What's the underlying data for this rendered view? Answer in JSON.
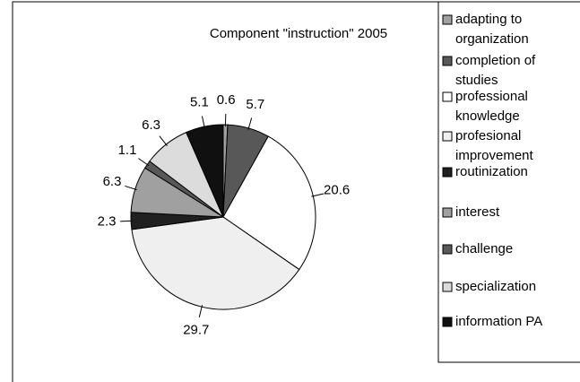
{
  "chart_data": {
    "type": "pie",
    "title": "Component \"instruction\" 2005",
    "categories": [
      "adapting to organization",
      "completion of studies",
      "professional knowledge",
      "profesional improvement",
      "routinization",
      "interest",
      "challenge",
      "specialization",
      "information PA"
    ],
    "values": [
      0.6,
      5.7,
      20.6,
      29.7,
      2.3,
      6.3,
      1.1,
      6.3,
      5.1
    ],
    "colors": [
      "#a0a0a0",
      "#585858",
      "#ffffff",
      "#efefef",
      "#202020",
      "#a0a0a0",
      "#585858",
      "#dcdcdc",
      "#101010"
    ],
    "legend": "right"
  }
}
